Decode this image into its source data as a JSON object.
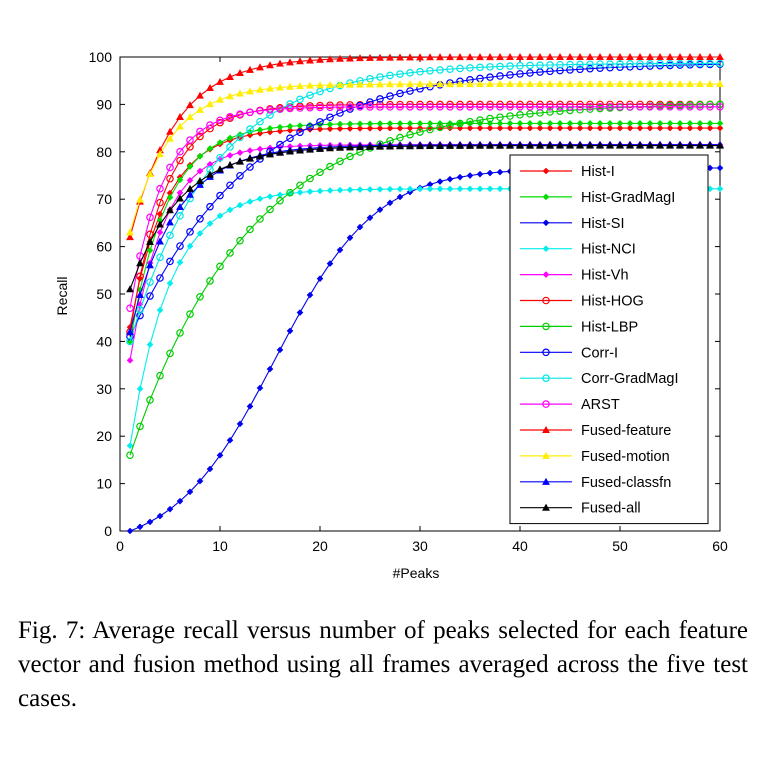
{
  "chart_data": {
    "type": "line",
    "xlabel": "#Peaks",
    "ylabel": "Recall",
    "xlim": [
      0,
      60
    ],
    "ylim": [
      0,
      100
    ],
    "xticks": [
      0,
      10,
      20,
      30,
      40,
      50,
      60
    ],
    "yticks": [
      0,
      10,
      20,
      30,
      40,
      50,
      60,
      70,
      80,
      90,
      100
    ],
    "grid": false,
    "legend_position": "right",
    "series": [
      {
        "name": "Hist-I",
        "color": "#ff0000",
        "marker": "dot",
        "start": 43,
        "plateau": 85,
        "rate": 0.28
      },
      {
        "name": "Hist-GradMagI",
        "color": "#00dd00",
        "marker": "dot",
        "start": 40,
        "plateau": 86,
        "rate": 0.27
      },
      {
        "name": "Hist-SI",
        "color": "#0000ee",
        "marker": "dot",
        "start": 0,
        "plateau": 76.6,
        "rate": 0.1,
        "sigmoid": true
      },
      {
        "name": "Hist-NCI",
        "color": "#00eeee",
        "marker": "dot",
        "start": 18,
        "plateau": 72.2,
        "rate": 0.25
      },
      {
        "name": "Hist-Vh",
        "color": "#ff00ff",
        "marker": "dot",
        "start": 36,
        "plateau": 81.5,
        "rate": 0.3
      },
      {
        "name": "Hist-HOG",
        "color": "#ff0000",
        "marker": "circle",
        "start": 42,
        "plateau": 90,
        "rate": 0.28
      },
      {
        "name": "Hist-LBP",
        "color": "#00cc00",
        "marker": "circle",
        "start": 16,
        "plateau": 90.5,
        "rate": 0.085
      },
      {
        "name": "Corr-I",
        "color": "#0000ff",
        "marker": "circle",
        "start": 41,
        "plateau": 99,
        "rate": 0.08
      },
      {
        "name": "Corr-GradMagI",
        "color": "#00e5e5",
        "marker": "circle",
        "start": 40,
        "plateau": 98.7,
        "rate": 0.12
      },
      {
        "name": "ARST",
        "color": "#ff00ff",
        "marker": "circle",
        "start": 47,
        "plateau": 89.5,
        "rate": 0.3
      },
      {
        "name": "Fused-feature",
        "color": "#ff0000",
        "marker": "triangle",
        "start": 62,
        "plateau": 100,
        "rate": 0.22
      },
      {
        "name": "Fused-motion",
        "color": "#ffee00",
        "marker": "triangle",
        "start": 63,
        "plateau": 94.3,
        "rate": 0.25
      },
      {
        "name": "Fused-classfn",
        "color": "#0000ff",
        "marker": "triangle",
        "start": 42,
        "plateau": 81.5,
        "rate": 0.22
      },
      {
        "name": "Fused-all",
        "color": "#000000",
        "marker": "triangle",
        "start": 51,
        "plateau": 81.3,
        "rate": 0.2
      }
    ]
  },
  "caption": "Fig. 7: Average recall versus number of peaks selected for each feature vector and fusion method using all frames averaged across the five test cases."
}
